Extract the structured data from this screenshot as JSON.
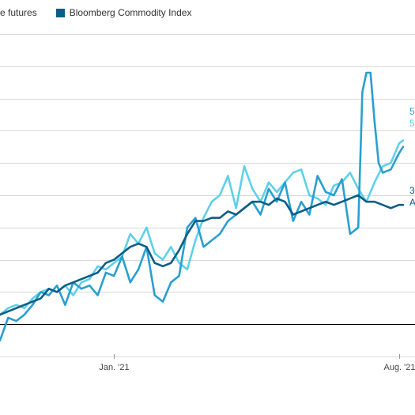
{
  "legend": [
    {
      "label": "e futures",
      "color": "#5fd0ea",
      "swatch": false
    },
    {
      "label": "Bloomberg Commodity Index",
      "color": "#0b5d87",
      "swatch": true
    }
  ],
  "end_labels": [
    {
      "text": "5",
      "color": "#2a9fd0"
    },
    {
      "text": "5",
      "color": "#5fd0ea"
    },
    {
      "text": "3",
      "color": "#0b5d87"
    },
    {
      "text": "A",
      "color": "#0b5d87"
    }
  ],
  "chart_data": {
    "type": "line",
    "title": "",
    "xlabel": "",
    "ylabel": "",
    "x_ticks": [
      "Jan. '21",
      "Aug. '21"
    ],
    "x_range": [
      0,
      100
    ],
    "ylim": [
      -10,
      90
    ],
    "grid": true,
    "baseline": 0,
    "legend_position": "top-left",
    "series": [
      {
        "name": "e futures",
        "color": "#5fd0ea",
        "x": [
          0,
          2,
          4,
          6,
          8,
          10,
          12,
          14,
          16,
          18,
          20,
          22,
          24,
          26,
          28,
          30,
          32,
          34,
          36,
          38,
          40,
          42,
          44,
          46,
          48,
          50,
          52,
          54,
          56,
          58,
          60,
          62,
          64,
          66,
          68,
          70,
          72,
          74,
          76,
          78,
          80,
          82,
          84,
          86,
          88,
          90,
          92,
          94,
          96,
          98,
          99
        ],
        "y": [
          3,
          5,
          6,
          5,
          8,
          10,
          11,
          10,
          12,
          9,
          13,
          14,
          18,
          17,
          19,
          21,
          28,
          25,
          30,
          22,
          20,
          24,
          19,
          17,
          26,
          33,
          38,
          40,
          46,
          36,
          49,
          42,
          38,
          44,
          41,
          44,
          47,
          48,
          40,
          39,
          37,
          43,
          44,
          47,
          42,
          38,
          44,
          49,
          50,
          56,
          57
        ]
      },
      {
        "name": "",
        "color": "#2a9fd0",
        "x": [
          0,
          2,
          4,
          6,
          8,
          10,
          12,
          14,
          16,
          18,
          20,
          22,
          24,
          26,
          28,
          30,
          32,
          34,
          36,
          38,
          40,
          42,
          44,
          46,
          48,
          50,
          52,
          54,
          56,
          58,
          60,
          62,
          64,
          66,
          68,
          70,
          72,
          74,
          76,
          78,
          80,
          82,
          84,
          86,
          88,
          89,
          90,
          91,
          92,
          93,
          94,
          96,
          98,
          99
        ],
        "y": [
          -5,
          2,
          1,
          3,
          6,
          10,
          9,
          12,
          6,
          13,
          11,
          12,
          9,
          16,
          15,
          21,
          13,
          17,
          24,
          9,
          7,
          13,
          15,
          30,
          33,
          24,
          26,
          28,
          32,
          34,
          36,
          38,
          34,
          42,
          38,
          44,
          32,
          38,
          34,
          46,
          41,
          40,
          45,
          28,
          30,
          72,
          78,
          78,
          63,
          50,
          47,
          48,
          53,
          55
        ]
      },
      {
        "name": "Bloomberg Commodity Index",
        "color": "#0b5d87",
        "x": [
          0,
          2,
          4,
          6,
          8,
          10,
          12,
          14,
          16,
          18,
          20,
          22,
          24,
          26,
          28,
          30,
          32,
          34,
          36,
          38,
          40,
          42,
          44,
          46,
          48,
          50,
          52,
          54,
          56,
          58,
          60,
          62,
          64,
          66,
          68,
          70,
          72,
          74,
          76,
          78,
          80,
          82,
          84,
          86,
          88,
          90,
          92,
          94,
          96,
          98,
          99
        ],
        "y": [
          3,
          4,
          5,
          6,
          7,
          8,
          11,
          10,
          12,
          13,
          14,
          15,
          16,
          19,
          20,
          22,
          24,
          25,
          24,
          19,
          18,
          19,
          23,
          28,
          32,
          32,
          33,
          33,
          35,
          34,
          36,
          38,
          38,
          37,
          39,
          38,
          34,
          35,
          36,
          37,
          38,
          37,
          38,
          39,
          40,
          38,
          38,
          37,
          36,
          37,
          37
        ]
      }
    ]
  }
}
